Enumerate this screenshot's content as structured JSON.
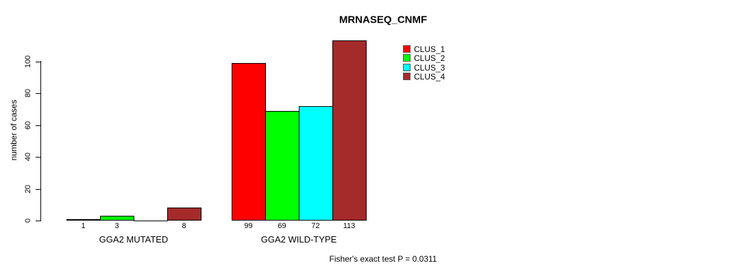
{
  "title": "MRNASEQ_CNMF",
  "y_axis": {
    "label": "number of cases",
    "ticks": [
      0,
      20,
      40,
      60,
      80,
      100
    ]
  },
  "groups": [
    "GGA2 MUTATED",
    "GGA2 WILD-TYPE"
  ],
  "legend": {
    "items": [
      {
        "label": "CLUS_1",
        "color": "#ff0000"
      },
      {
        "label": "CLUS_2",
        "color": "#00ff00"
      },
      {
        "label": "CLUS_3",
        "color": "#00ffff"
      },
      {
        "label": "CLUS_4",
        "color": "#a52a2a"
      }
    ]
  },
  "footer": "Fisher's exact test P = 0.0311",
  "chart_data": {
    "type": "bar",
    "title": "MRNASEQ_CNMF",
    "xlabel": "",
    "ylabel": "number of cases",
    "categories": [
      "GGA2 MUTATED",
      "GGA2 WILD-TYPE"
    ],
    "series": [
      {
        "name": "CLUS_1",
        "color": "#ff0000",
        "values": [
          1,
          99
        ]
      },
      {
        "name": "CLUS_2",
        "color": "#00ff00",
        "values": [
          3,
          69
        ]
      },
      {
        "name": "CLUS_3",
        "color": "#00ffff",
        "values": [
          0,
          72
        ]
      },
      {
        "name": "CLUS_4",
        "color": "#a52a2a",
        "values": [
          8,
          113
        ]
      }
    ],
    "yticks": [
      0,
      20,
      40,
      60,
      80,
      100
    ],
    "ylim": [
      0,
      117
    ],
    "grid": false,
    "legend_position": "top-right",
    "bar_value_labels": true,
    "zero_values_hidden": true,
    "annotation": "Fisher's exact test P = 0.0311"
  }
}
